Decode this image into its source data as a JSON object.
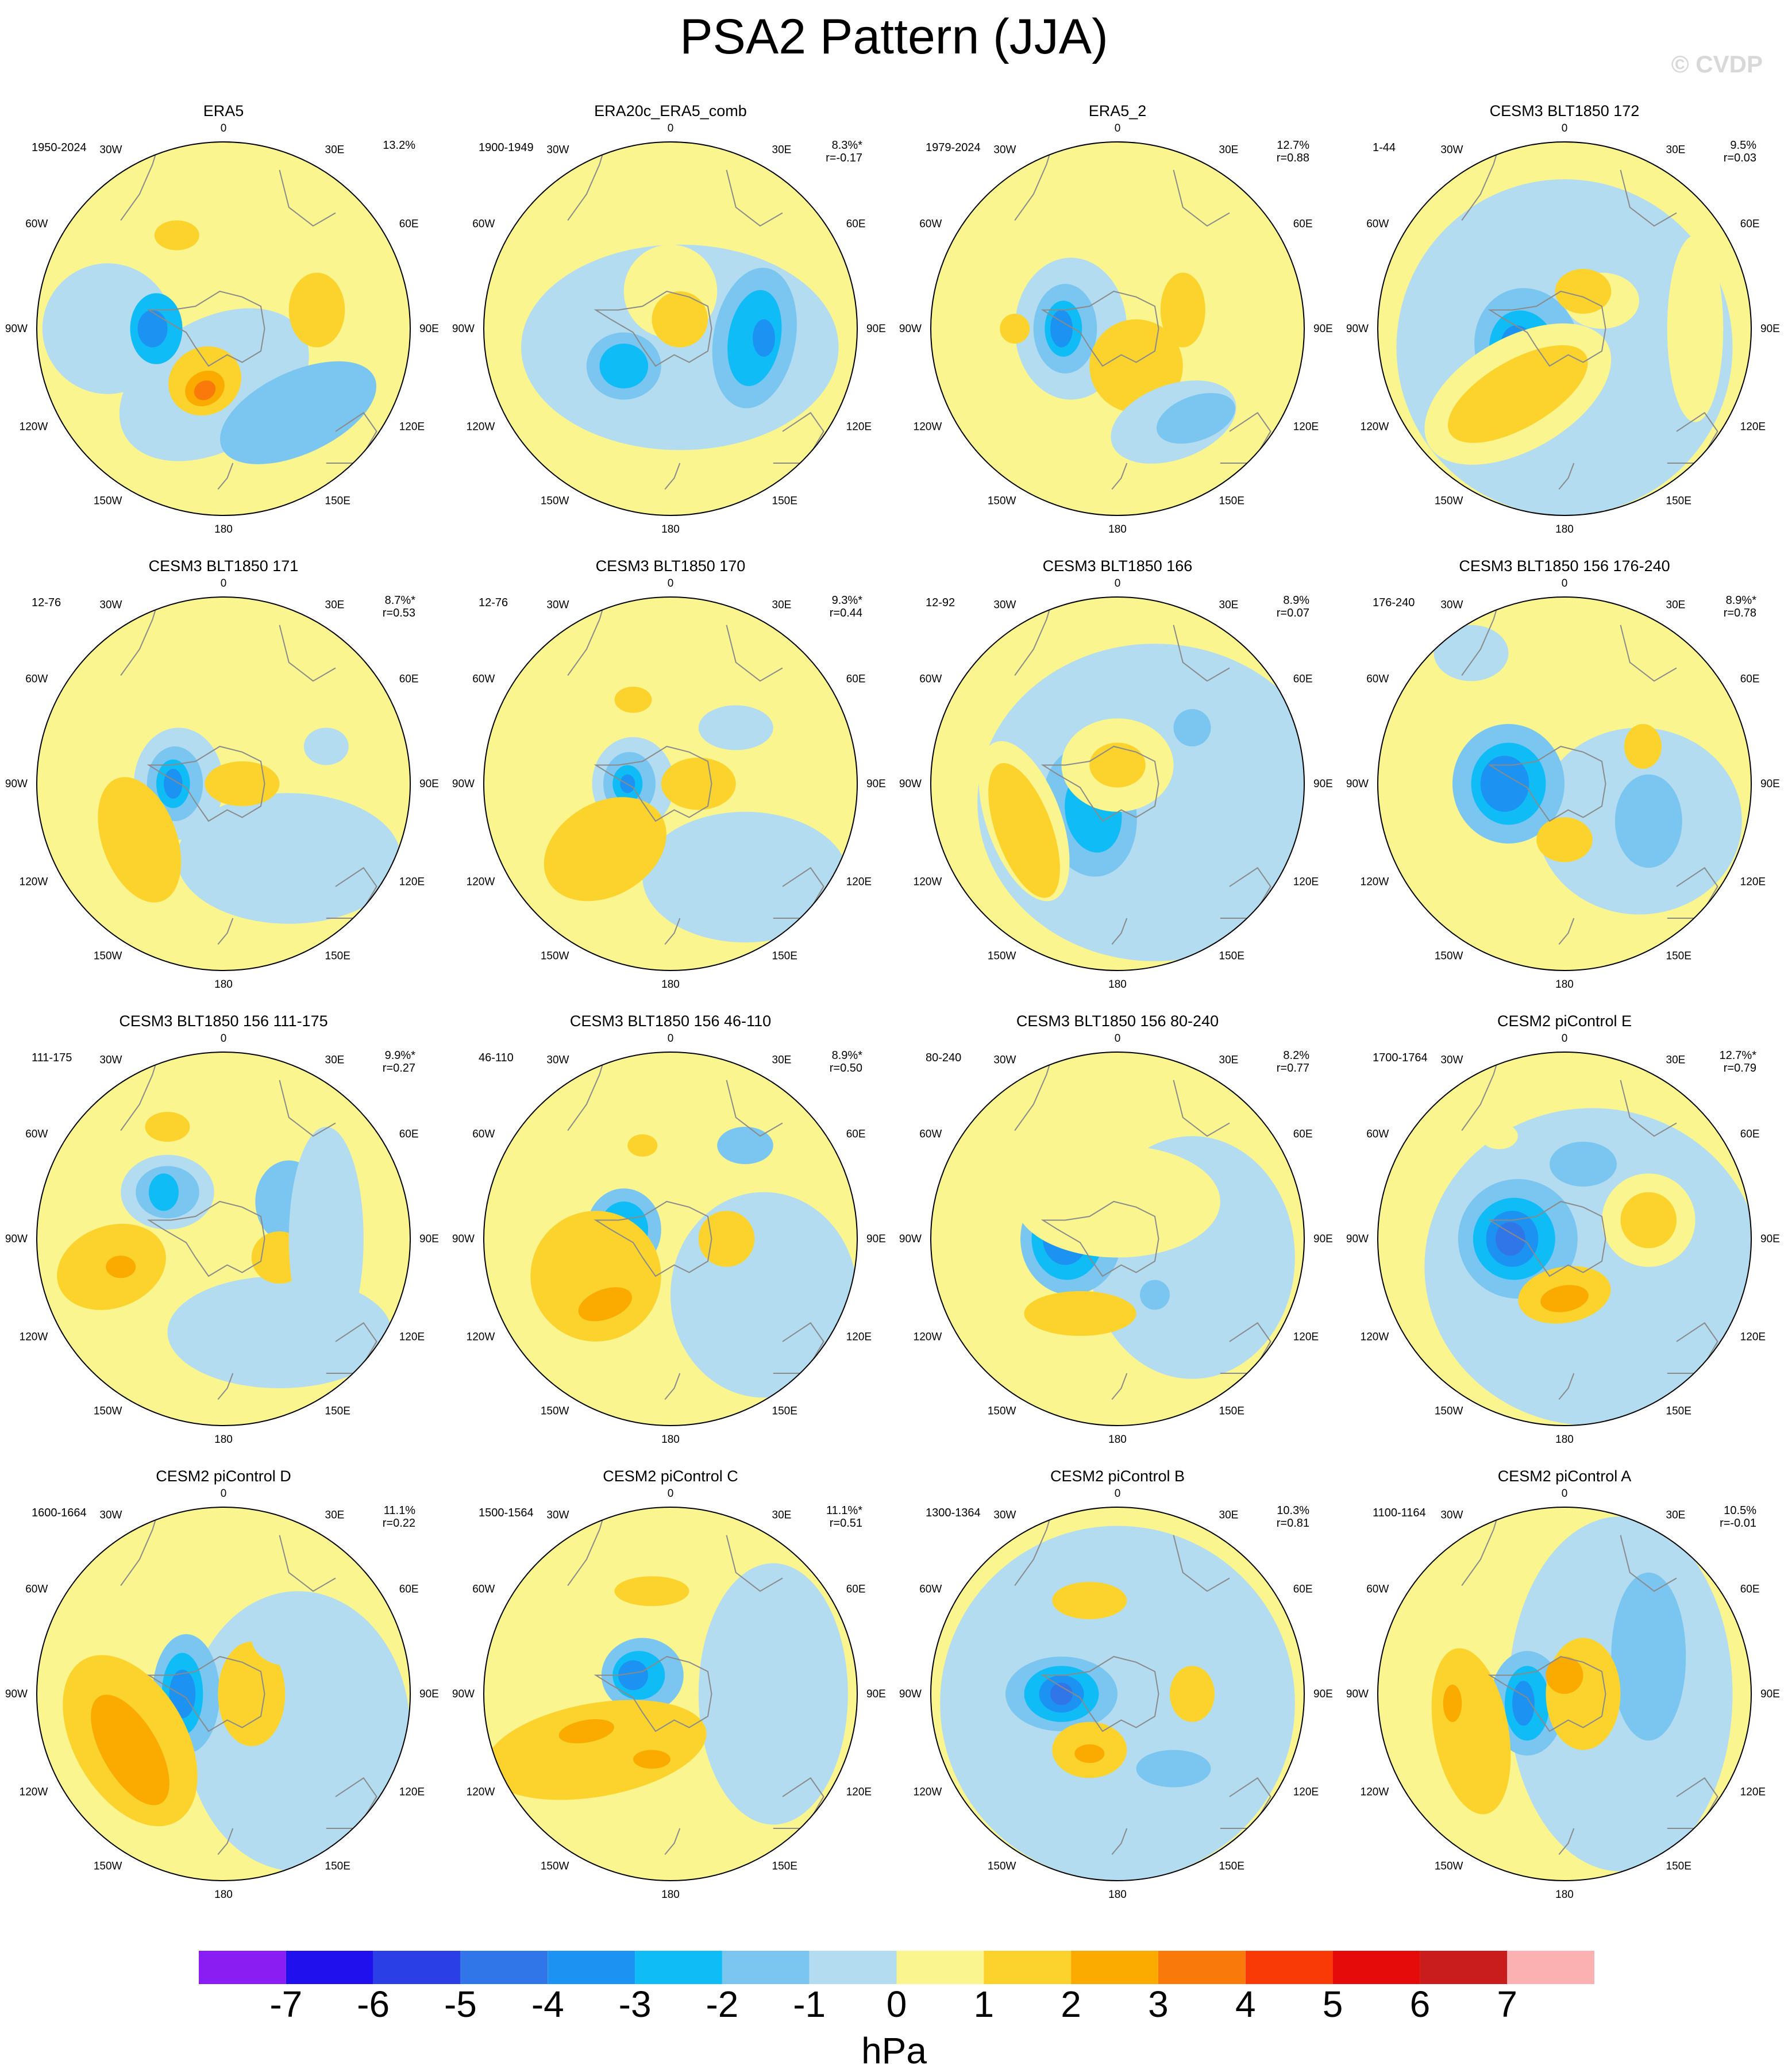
{
  "title": "PSA2 Pattern (JJA)",
  "watermark": "© CVDP",
  "lon_labels": [
    "0",
    "30E",
    "60E",
    "90E",
    "120E",
    "150E",
    "180",
    "150W",
    "120W",
    "90W",
    "60W",
    "30W"
  ],
  "colors": {
    "levels": [
      "#8a1df2",
      "#2010ee",
      "#2b3fe6",
      "#3076e8",
      "#1c93f2",
      "#10bcf5",
      "#7bc6f0",
      "#b3dcf0",
      "#fbf590",
      "#fbd32c",
      "#fbaa00",
      "#f97a0a",
      "#f93a06",
      "#e60b0b",
      "#c91c1c",
      "#fbb1b1"
    ],
    "coast": "#8a8a8a"
  },
  "colorbar": {
    "ticks": [
      "-7",
      "-6",
      "-5",
      "-4",
      "-3",
      "-2",
      "-1",
      "0",
      "1",
      "2",
      "3",
      "4",
      "5",
      "6",
      "7"
    ],
    "units": "hPa"
  },
  "chart_data": [
    {
      "type": "heatmap",
      "title": "ERA5",
      "years": "1950-2024",
      "stats": "13.2%"
    },
    {
      "type": "heatmap",
      "title": "ERA20c_ERA5_comb",
      "years": "1900-1949",
      "stats": "8.3%*\nr=-0.17"
    },
    {
      "type": "heatmap",
      "title": "ERA5_2",
      "years": "1979-2024",
      "stats": "12.7%\nr=0.88"
    },
    {
      "type": "heatmap",
      "title": "CESM3 BLT1850 172",
      "years": "1-44",
      "stats": "9.5%\nr=0.03"
    },
    {
      "type": "heatmap",
      "title": "CESM3 BLT1850 171",
      "years": "12-76",
      "stats": "8.7%*\nr=0.53"
    },
    {
      "type": "heatmap",
      "title": "CESM3 BLT1850 170",
      "years": "12-76",
      "stats": "9.3%*\nr=0.44"
    },
    {
      "type": "heatmap",
      "title": "CESM3 BLT1850 166",
      "years": "12-92",
      "stats": "8.9%\nr=0.07"
    },
    {
      "type": "heatmap",
      "title": "CESM3 BLT1850 156 176-240",
      "years": "176-240",
      "stats": "8.9%*\nr=0.78"
    },
    {
      "type": "heatmap",
      "title": "CESM3 BLT1850 156 111-175",
      "years": "111-175",
      "stats": "9.9%*\nr=0.27"
    },
    {
      "type": "heatmap",
      "title": "CESM3 BLT1850 156 46-110",
      "years": "46-110",
      "stats": "8.9%*\nr=0.50"
    },
    {
      "type": "heatmap",
      "title": "CESM3 BLT1850 156 80-240",
      "years": "80-240",
      "stats": "8.2%\nr=0.77"
    },
    {
      "type": "heatmap",
      "title": "CESM2 piControl E",
      "years": "1700-1764",
      "stats": "12.7%*\nr=0.79"
    },
    {
      "type": "heatmap",
      "title": "CESM2 piControl D",
      "years": "1600-1664",
      "stats": "11.1%\nr=0.22"
    },
    {
      "type": "heatmap",
      "title": "CESM2 piControl C",
      "years": "1500-1564",
      "stats": "11.1%*\nr=0.51"
    },
    {
      "type": "heatmap",
      "title": "CESM2 piControl B",
      "years": "1300-1364",
      "stats": "10.3%\nr=0.81"
    },
    {
      "type": "heatmap",
      "title": "CESM2 piControl A",
      "years": "1100-1164",
      "stats": "10.5%\nr=-0.01"
    }
  ]
}
